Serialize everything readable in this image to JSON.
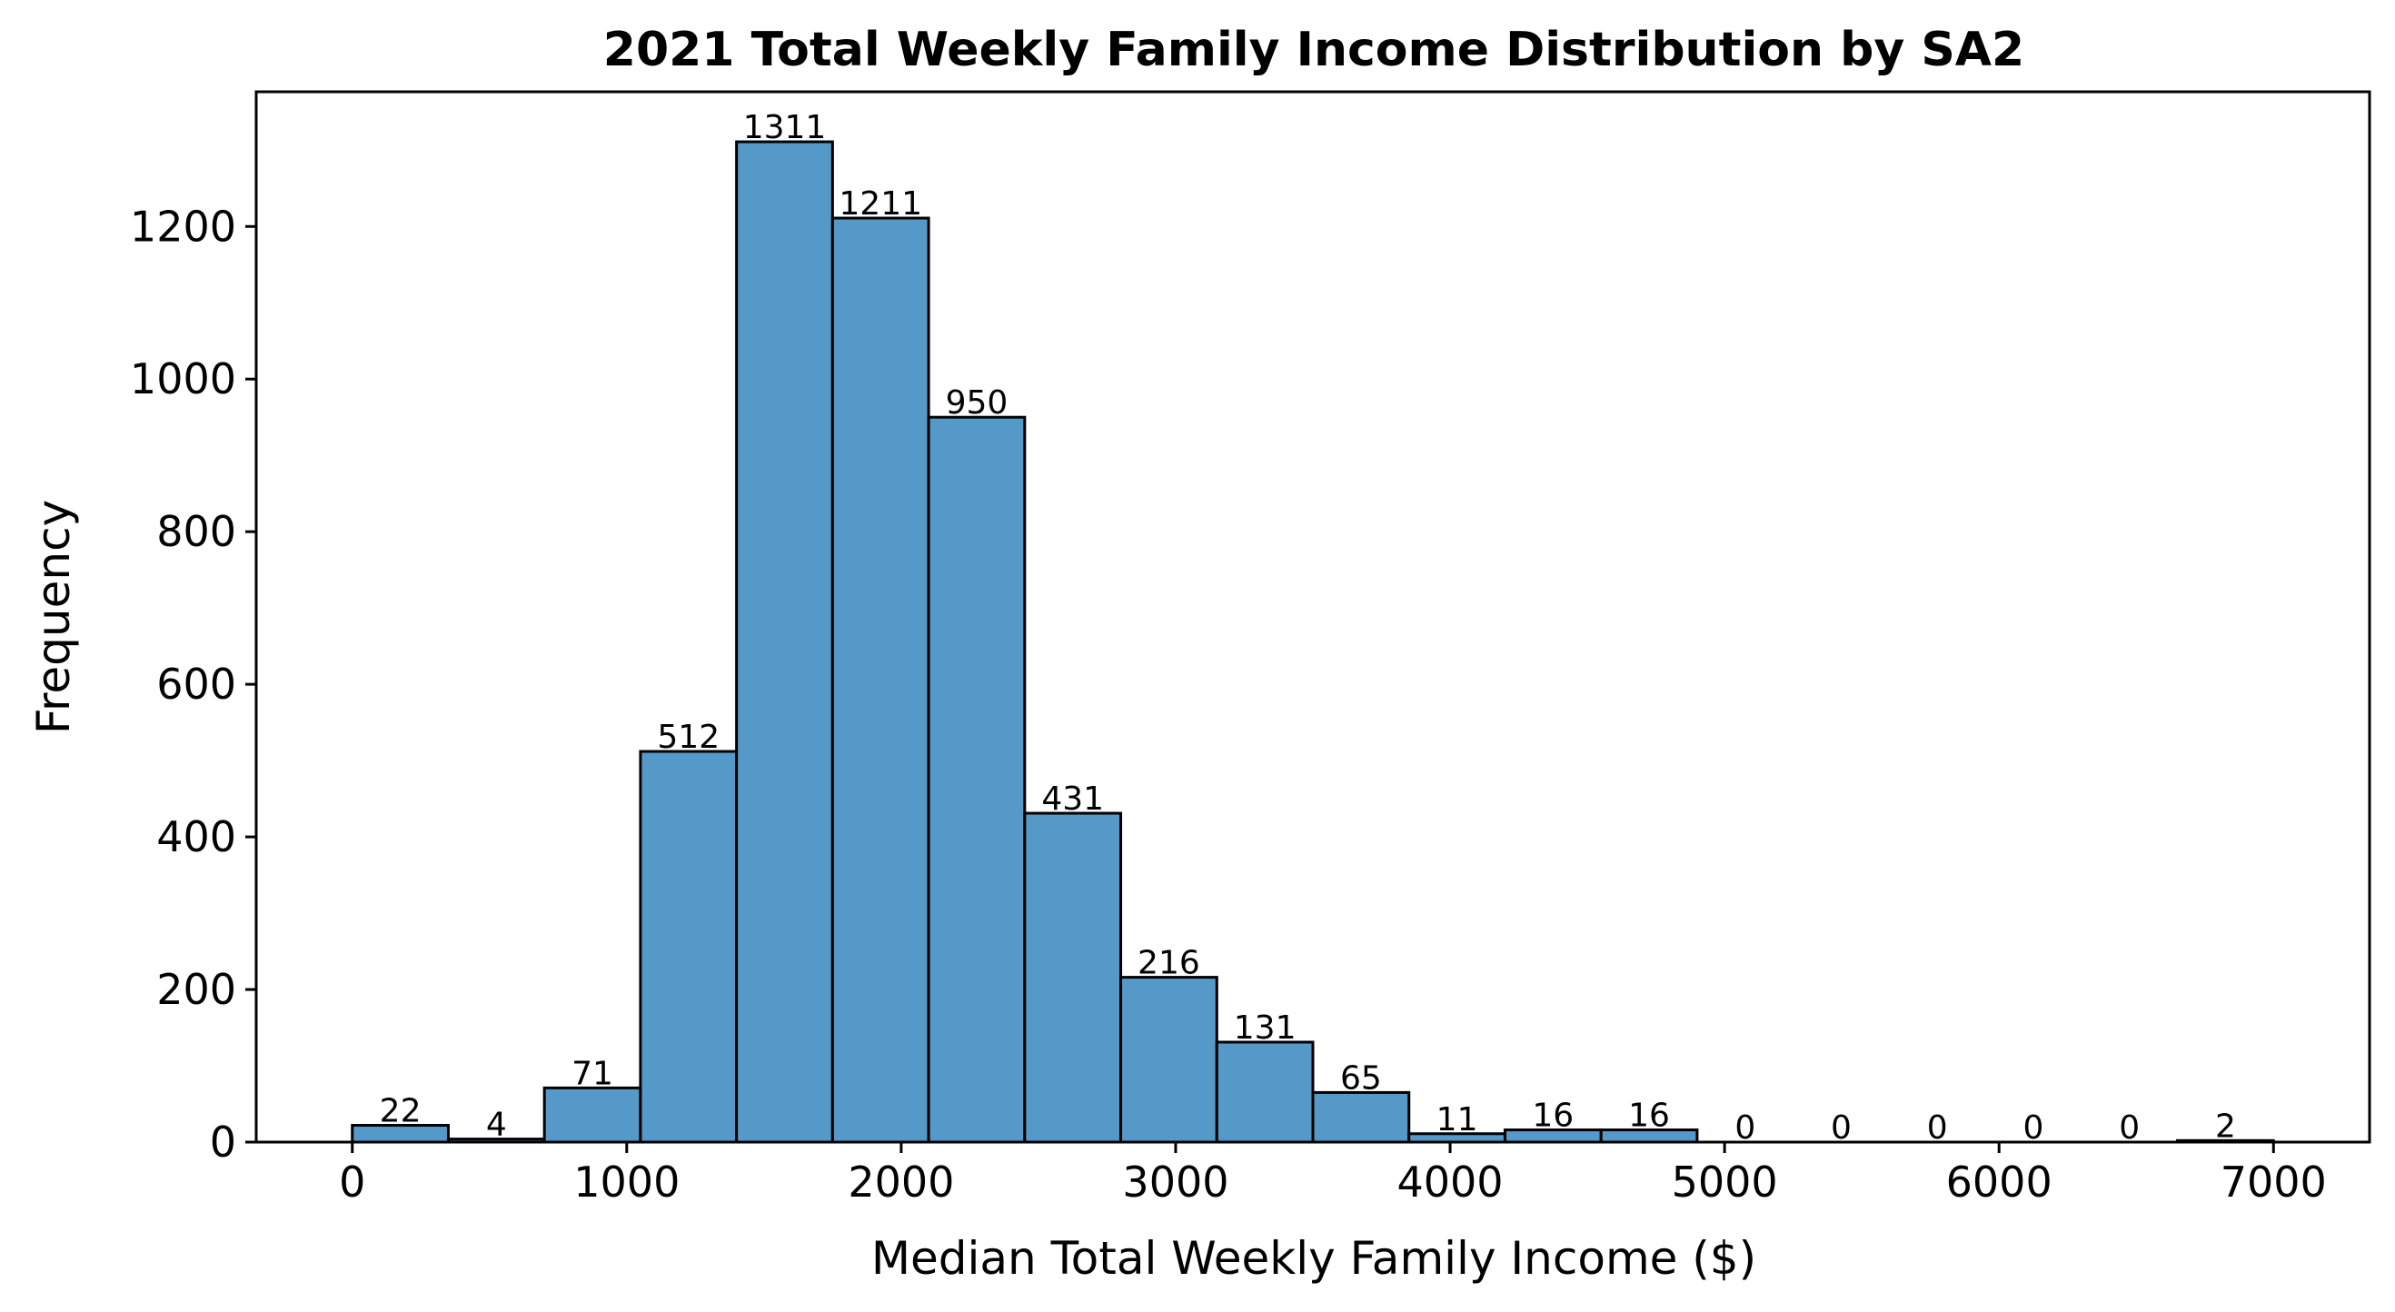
{
  "chart_data": {
    "type": "bar",
    "title": "2021 Total Weekly Family Income Distribution by SA2",
    "xlabel": "Median Total Weekly Family Income ($)",
    "ylabel": "Frequency",
    "bar_color": "#5599c8",
    "grid": false,
    "x_range": [
      0,
      7000
    ],
    "bin_width": 350,
    "xlim": [
      -350,
      7350
    ],
    "ylim": [
      0,
      1376.55
    ],
    "x_ticks": [
      0,
      1000,
      2000,
      3000,
      4000,
      5000,
      6000,
      7000
    ],
    "y_ticks": [
      0,
      200,
      400,
      600,
      800,
      1000,
      1200
    ],
    "values": [
      22,
      4,
      71,
      512,
      1311,
      1211,
      950,
      431,
      216,
      131,
      65,
      11,
      16,
      16,
      0,
      0,
      0,
      0,
      0,
      2
    ]
  }
}
